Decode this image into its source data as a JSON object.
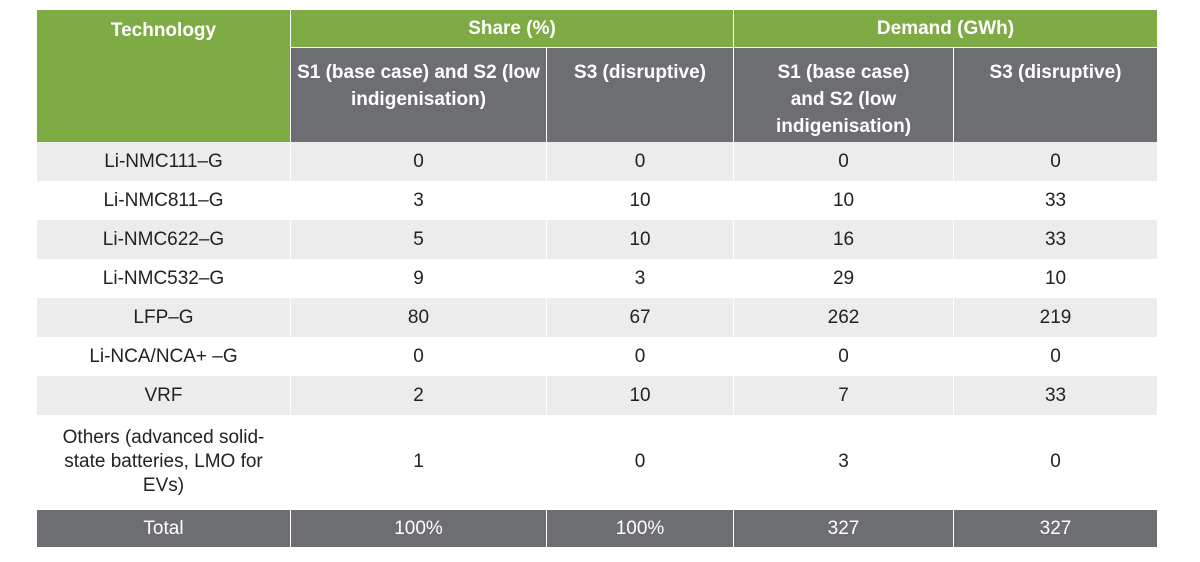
{
  "headers": {
    "technology": "Technology",
    "share": "Share (%)",
    "demand": "Demand (GWh)",
    "share_s1s2": "S1 (base case) and S2 (low indigenisation)",
    "share_s3": "S3 (disruptive)",
    "demand_s1s2": "S1 (base case) and S2 (low indigenisation)",
    "demand_s3": "S3 (disruptive)"
  },
  "rows": [
    {
      "technology": "Li-NMC111–G",
      "share_s1s2": "0",
      "share_s3": "0",
      "demand_s1s2": "0",
      "demand_s3": "0"
    },
    {
      "technology": "Li-NMC811–G",
      "share_s1s2": "3",
      "share_s3": "10",
      "demand_s1s2": "10",
      "demand_s3": "33"
    },
    {
      "technology": "Li-NMC622–G",
      "share_s1s2": "5",
      "share_s3": "10",
      "demand_s1s2": "16",
      "demand_s3": "33"
    },
    {
      "technology": "Li-NMC532–G",
      "share_s1s2": "9",
      "share_s3": "3",
      "demand_s1s2": "29",
      "demand_s3": "10"
    },
    {
      "technology": "LFP–G",
      "share_s1s2": "80",
      "share_s3": "67",
      "demand_s1s2": "262",
      "demand_s3": "219"
    },
    {
      "technology": "Li-NCA/NCA+ –G",
      "share_s1s2": "0",
      "share_s3": "0",
      "demand_s1s2": "0",
      "demand_s3": "0"
    },
    {
      "technology": "VRF",
      "share_s1s2": "2",
      "share_s3": "10",
      "demand_s1s2": "7",
      "demand_s3": "33"
    },
    {
      "technology": "Others (advanced solid-state batteries, LMO for EVs)",
      "share_s1s2": "1",
      "share_s3": "0",
      "demand_s1s2": "3",
      "demand_s3": "0"
    }
  ],
  "total": {
    "technology": "Total",
    "share_s1s2": "100%",
    "share_s3": "100%",
    "demand_s1s2": "327",
    "demand_s3": "327"
  },
  "colors": {
    "header_green": "#7fab45",
    "header_grey": "#6d6e71",
    "row_shade": "#ececec"
  }
}
